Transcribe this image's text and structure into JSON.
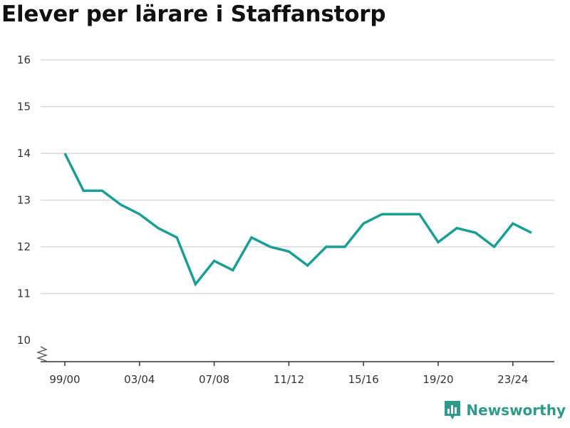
{
  "chart_data": {
    "type": "line",
    "title": "Elever per lärare i Staffanstorp",
    "xlabel": "",
    "ylabel": "",
    "ylim": [
      10,
      16
    ],
    "y_ticks": [
      "10",
      "11",
      "12",
      "13",
      "14",
      "15",
      "16"
    ],
    "x_tick_labels": [
      "99/00",
      "03/04",
      "07/08",
      "11/12",
      "15/16",
      "19/20",
      "23/24"
    ],
    "grid": true,
    "axis_break": true,
    "line_color": "#1a9e96",
    "series": [
      {
        "x": [
          "99/00",
          "00/01",
          "01/02",
          "02/03",
          "03/04",
          "04/05",
          "05/06",
          "06/07",
          "07/08",
          "08/09",
          "09/10",
          "10/11",
          "11/12",
          "12/13",
          "13/14",
          "14/15",
          "15/16",
          "16/17",
          "17/18",
          "18/19",
          "19/20",
          "20/21",
          "21/22",
          "22/23",
          "23/24",
          "24/25"
        ],
        "values": [
          14.0,
          13.2,
          13.2,
          12.9,
          12.7,
          12.4,
          12.2,
          11.2,
          11.7,
          11.5,
          12.2,
          12.0,
          11.9,
          11.6,
          12.0,
          12.0,
          12.5,
          12.7,
          12.7,
          12.7,
          12.1,
          12.4,
          12.3,
          12.0,
          12.5,
          12.3
        ]
      }
    ]
  },
  "branding": {
    "name": "Newsworthy",
    "color": "#2f9a8c"
  }
}
